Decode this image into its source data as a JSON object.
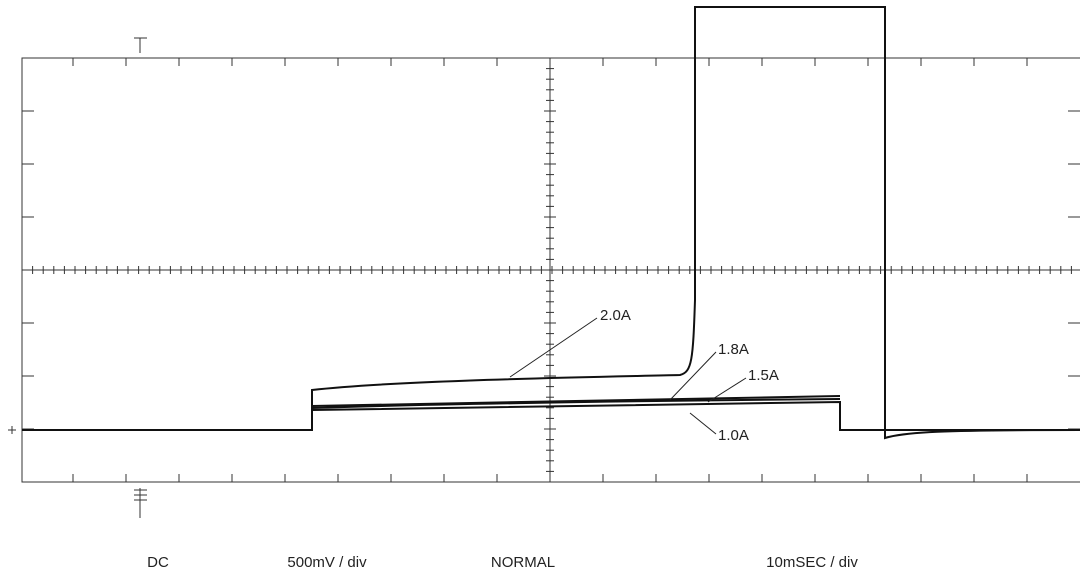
{
  "trace_labels": [
    "2.0A",
    "1.8A",
    "1.5A",
    "1.0A"
  ],
  "footer": {
    "coupling": "DC",
    "volts_per_div": "500mV / div",
    "mode": "NORMAL",
    "time_per_div": "10mSEC / div"
  }
}
